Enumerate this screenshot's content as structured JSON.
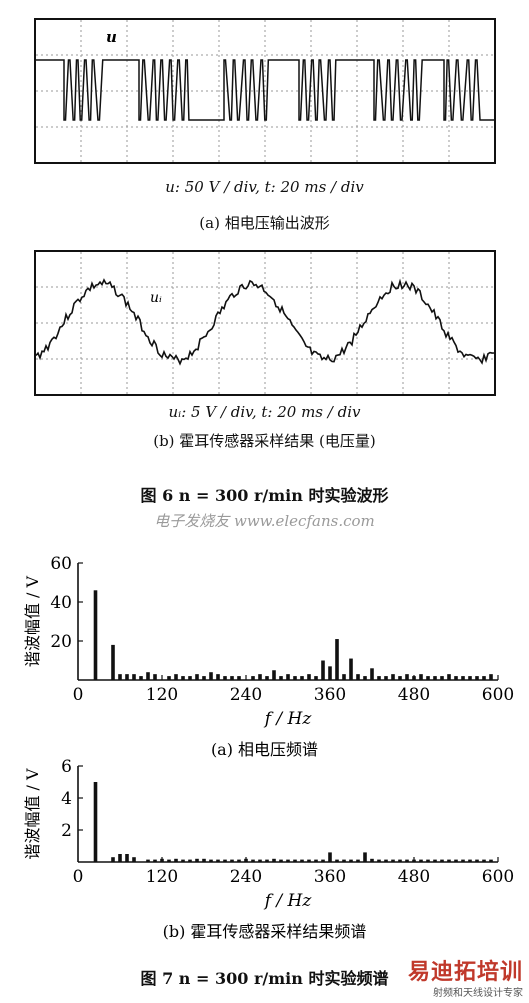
{
  "fig6": {
    "panel_a": {
      "trace_label": "u",
      "scale_text": "u: 50 V / div, t: 20 ms / div",
      "caption": "(a)  相电压输出波形"
    },
    "panel_b": {
      "trace_label": "uᵢ",
      "scale_text": "uᵢ: 5 V / div, t: 20 ms / div",
      "caption": "(b)  霍耳传感器采样结果 (电压量)"
    },
    "title": "图 6    n = 300 r/min 时实验波形"
  },
  "watermark": "电子发烧友 www.elecfans.com",
  "fig7": {
    "title": "图 7    n = 300 r/min 时实验频谱",
    "chart_data": [
      {
        "type": "bar",
        "title": "(a) 相电压频谱",
        "xlabel": "f / Hz",
        "ylabel": "谐波幅值 / V",
        "xlim": [
          0,
          600
        ],
        "ylim": [
          0,
          60
        ],
        "xticks": [
          0,
          120,
          240,
          360,
          480,
          600
        ],
        "yticks": [
          20,
          40,
          60
        ],
        "x": [
          25,
          50,
          60,
          70,
          80,
          90,
          100,
          110,
          130,
          140,
          150,
          160,
          170,
          180,
          190,
          200,
          210,
          220,
          230,
          250,
          260,
          270,
          280,
          290,
          300,
          310,
          320,
          330,
          340,
          350,
          360,
          370,
          380,
          390,
          400,
          410,
          420,
          430,
          440,
          450,
          460,
          470,
          480,
          490,
          500,
          510,
          520,
          530,
          540,
          550,
          560,
          570,
          580,
          590
        ],
        "values": [
          46,
          18,
          3,
          3,
          3,
          2,
          4,
          3,
          2,
          3,
          2,
          2,
          3,
          2,
          4,
          3,
          2,
          2,
          2,
          2,
          3,
          2,
          5,
          2,
          3,
          2,
          2,
          3,
          2,
          10,
          7,
          21,
          3,
          11,
          3,
          2,
          6,
          2,
          2,
          3,
          2,
          3,
          2,
          3,
          2,
          2,
          2,
          3,
          2,
          2,
          2,
          2,
          2,
          3
        ]
      },
      {
        "type": "bar",
        "title": "(b) 霍耳传感器采样结果频谱",
        "xlabel": "f / Hz",
        "ylabel": "谐波幅值 / V",
        "xlim": [
          0,
          600
        ],
        "ylim": [
          0,
          6
        ],
        "xticks": [
          0,
          120,
          240,
          360,
          480,
          600
        ],
        "yticks": [
          2,
          4,
          6
        ],
        "x": [
          25,
          50,
          60,
          70,
          80,
          100,
          110,
          120,
          130,
          140,
          150,
          160,
          170,
          180,
          190,
          200,
          210,
          220,
          230,
          240,
          250,
          260,
          270,
          280,
          290,
          300,
          310,
          320,
          330,
          340,
          350,
          360,
          370,
          380,
          390,
          400,
          410,
          420,
          430,
          440,
          450,
          460,
          470,
          480,
          490,
          500,
          510,
          520,
          530,
          540,
          550,
          560,
          570,
          580,
          590
        ],
        "values": [
          5.0,
          0.3,
          0.5,
          0.5,
          0.3,
          0.15,
          0.15,
          0.2,
          0.15,
          0.2,
          0.15,
          0.15,
          0.2,
          0.2,
          0.15,
          0.15,
          0.15,
          0.15,
          0.15,
          0.2,
          0.15,
          0.15,
          0.15,
          0.2,
          0.15,
          0.15,
          0.15,
          0.15,
          0.15,
          0.15,
          0.15,
          0.6,
          0.15,
          0.15,
          0.15,
          0.15,
          0.6,
          0.2,
          0.15,
          0.15,
          0.15,
          0.15,
          0.15,
          0.15,
          0.15,
          0.15,
          0.15,
          0.15,
          0.15,
          0.15,
          0.15,
          0.15,
          0.15,
          0.15,
          0.15
        ]
      }
    ]
  },
  "logo": {
    "main": "易迪拓培训",
    "sub": "射频和天线设计专家"
  }
}
